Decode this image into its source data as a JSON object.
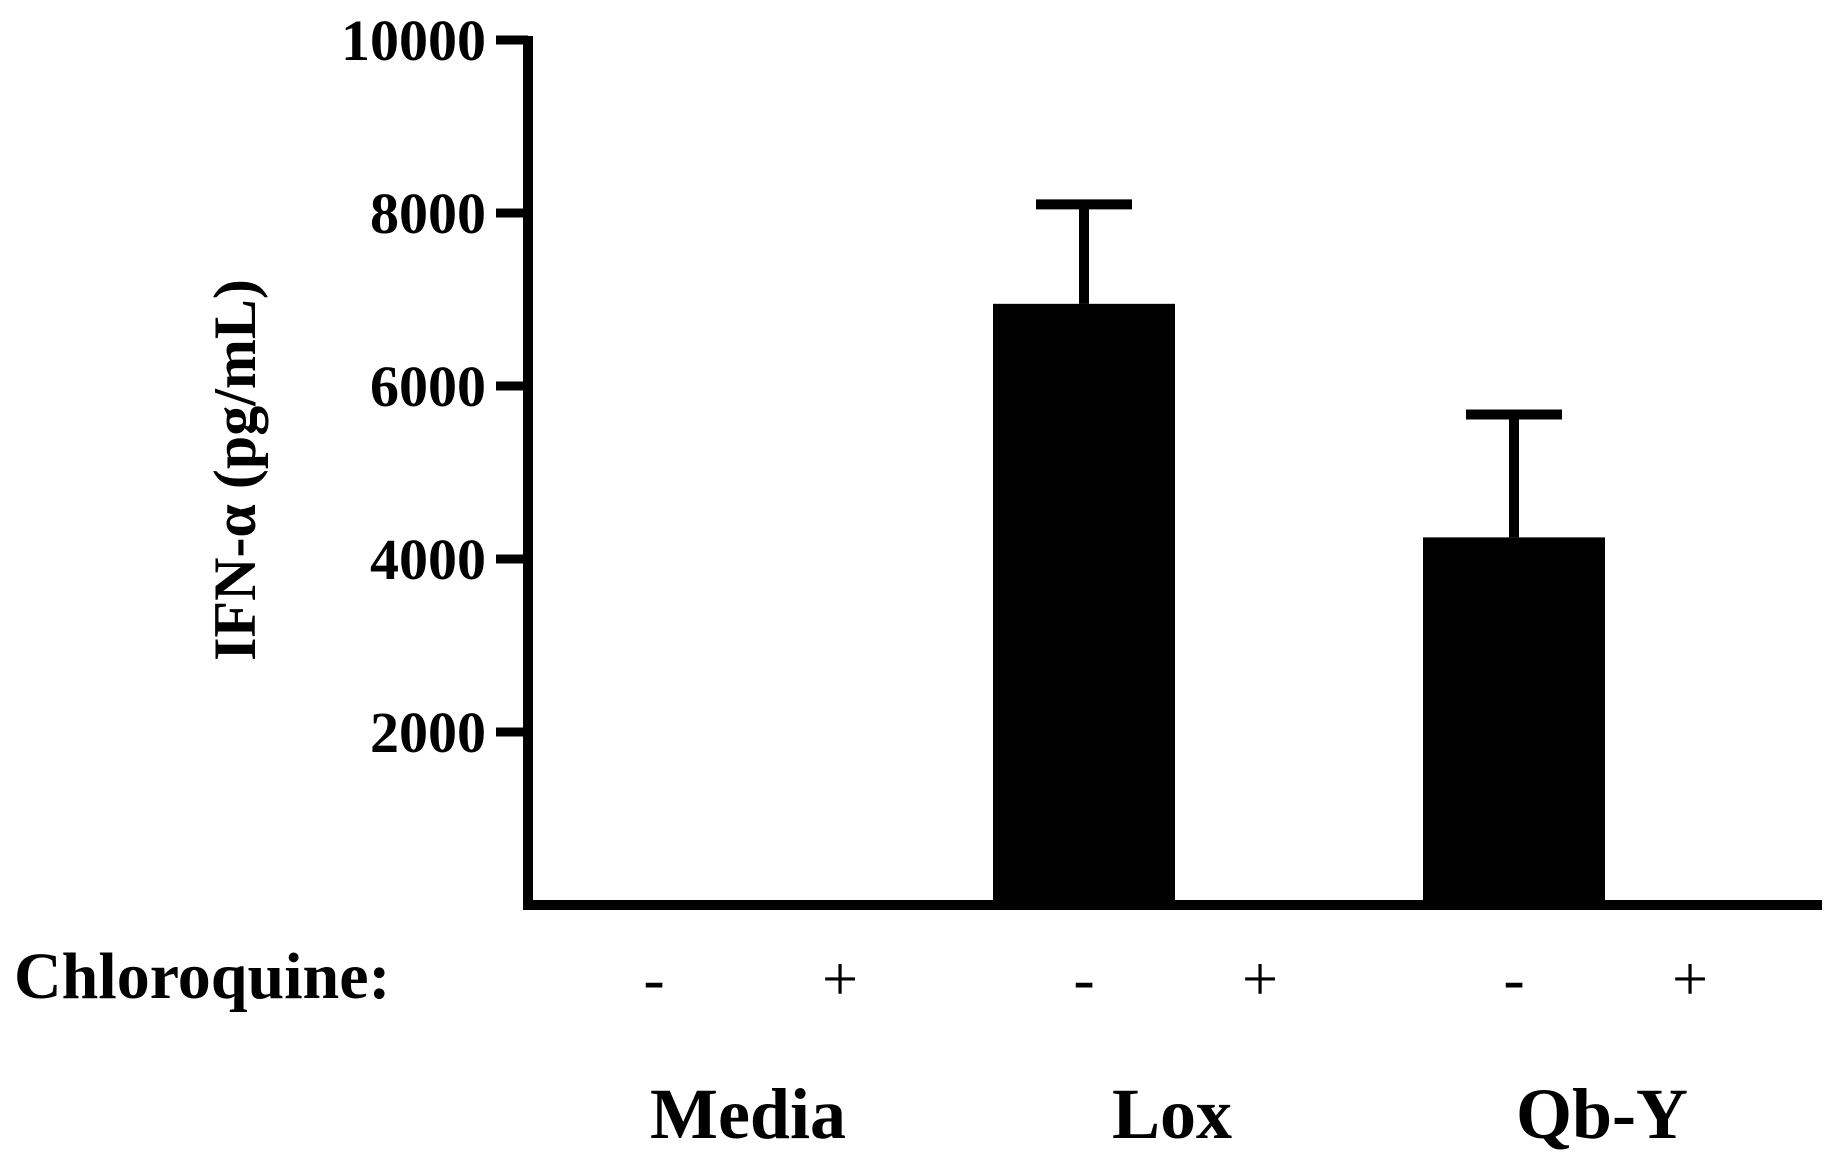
{
  "chart_data": {
    "type": "bar",
    "title": "",
    "xlabel": "",
    "ylabel": "IFN-α (pg/mL)",
    "ylim": [
      0,
      10000
    ],
    "yticks": [
      2000,
      4000,
      6000,
      8000,
      10000
    ],
    "grid": false,
    "legend": "none",
    "bar_color": "#000000",
    "condition_label": "Chloroquine:",
    "groups": [
      "Media",
      "Lox",
      "Qb-Y"
    ],
    "bars": [
      {
        "group": "Media",
        "chloroquine": "-",
        "value": 30,
        "error": 0
      },
      {
        "group": "Media",
        "chloroquine": "+",
        "value": 30,
        "error": 0
      },
      {
        "group": "Lox",
        "chloroquine": "-",
        "value": 6950,
        "error": 1150
      },
      {
        "group": "Lox",
        "chloroquine": "+",
        "value": 30,
        "error": 0
      },
      {
        "group": "Qb-Y",
        "chloroquine": "-",
        "value": 4250,
        "error": 1420
      },
      {
        "group": "Qb-Y",
        "chloroquine": "+",
        "value": 30,
        "error": 0
      }
    ]
  }
}
